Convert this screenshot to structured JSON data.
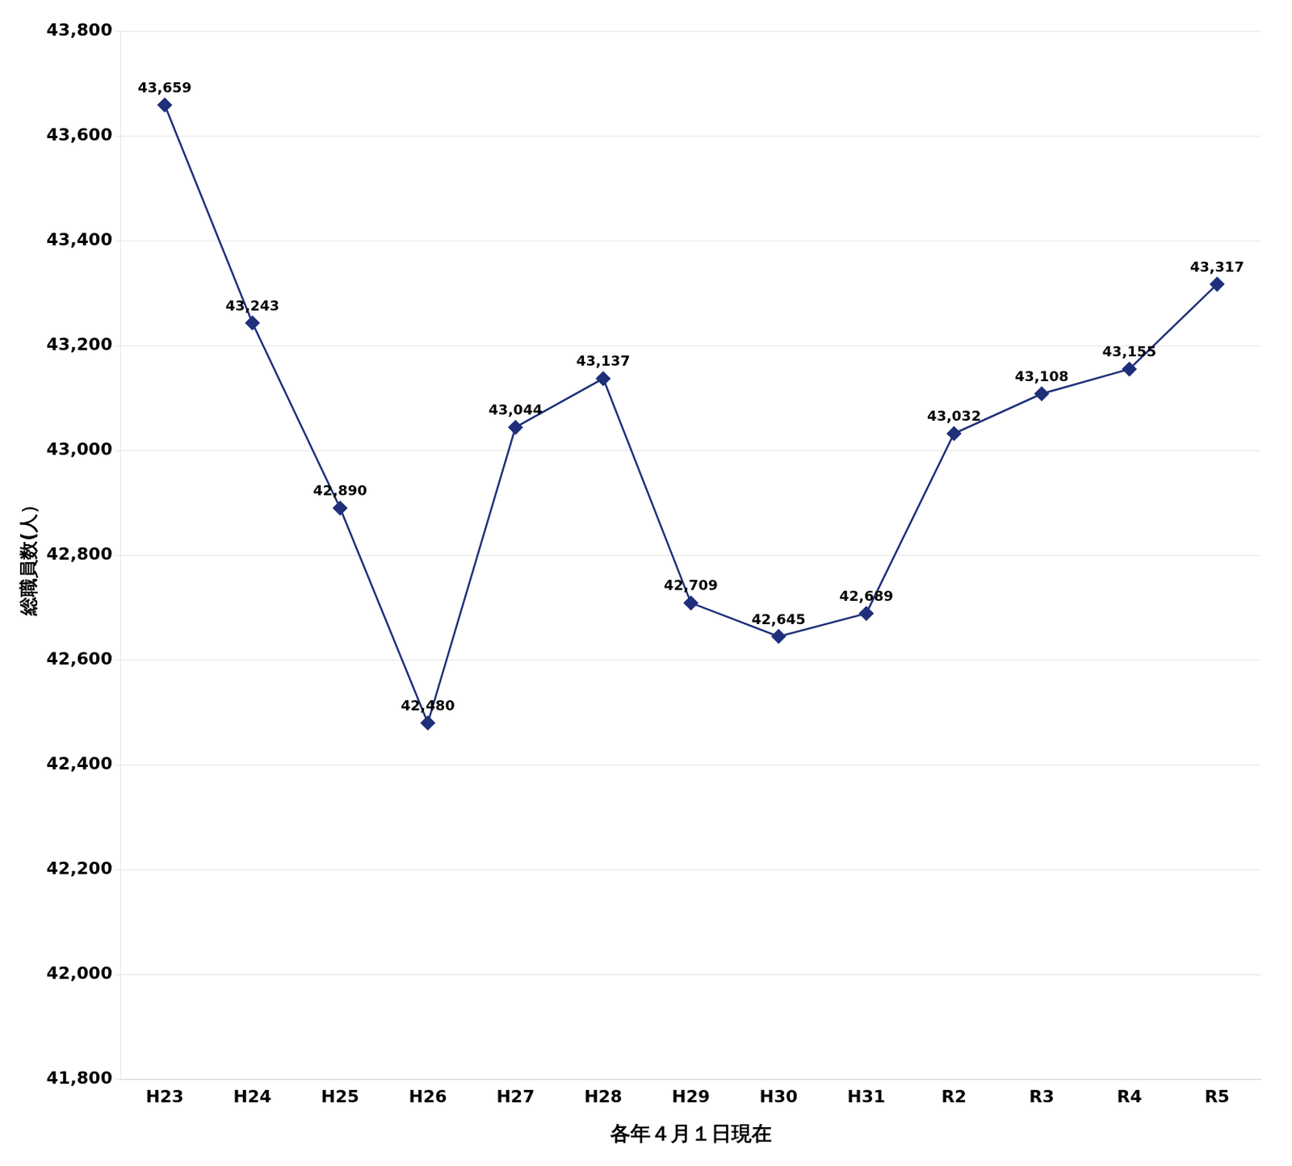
{
  "chart_data": {
    "type": "line",
    "categories": [
      "H23",
      "H24",
      "H25",
      "H26",
      "H27",
      "H28",
      "H29",
      "H30",
      "H31",
      "R2",
      "R3",
      "R4",
      "R5"
    ],
    "values": [
      43659,
      43243,
      42890,
      42480,
      43044,
      43137,
      42709,
      42645,
      42689,
      43032,
      43108,
      43155,
      43317
    ],
    "value_labels": [
      "43,659",
      "43,243",
      "42,890",
      "42,480",
      "43,044",
      "43,137",
      "42,709",
      "42,645",
      "42,689",
      "43,032",
      "43,108",
      "43,155",
      "43,317"
    ],
    "data_labels": true,
    "x_label": "各年４月１日現在",
    "y_label": "総職員数(人）",
    "ylim": [
      41800,
      43800
    ],
    "yticks": [
      {
        "value": 41800,
        "label": "41,800"
      },
      {
        "value": 42000,
        "label": "42,000"
      },
      {
        "value": 42200,
        "label": "42,200"
      },
      {
        "value": 42400,
        "label": "42,400"
      },
      {
        "value": 42600,
        "label": "42,600"
      },
      {
        "value": 42800,
        "label": "42,800"
      },
      {
        "value": 43000,
        "label": "43,000"
      },
      {
        "value": 43200,
        "label": "43,200"
      },
      {
        "value": 43400,
        "label": "43,400"
      },
      {
        "value": 43600,
        "label": "43,600"
      },
      {
        "value": 43800,
        "label": "43,800"
      }
    ],
    "color": "#1F2F7A",
    "marker": "diamond",
    "grid": true
  }
}
